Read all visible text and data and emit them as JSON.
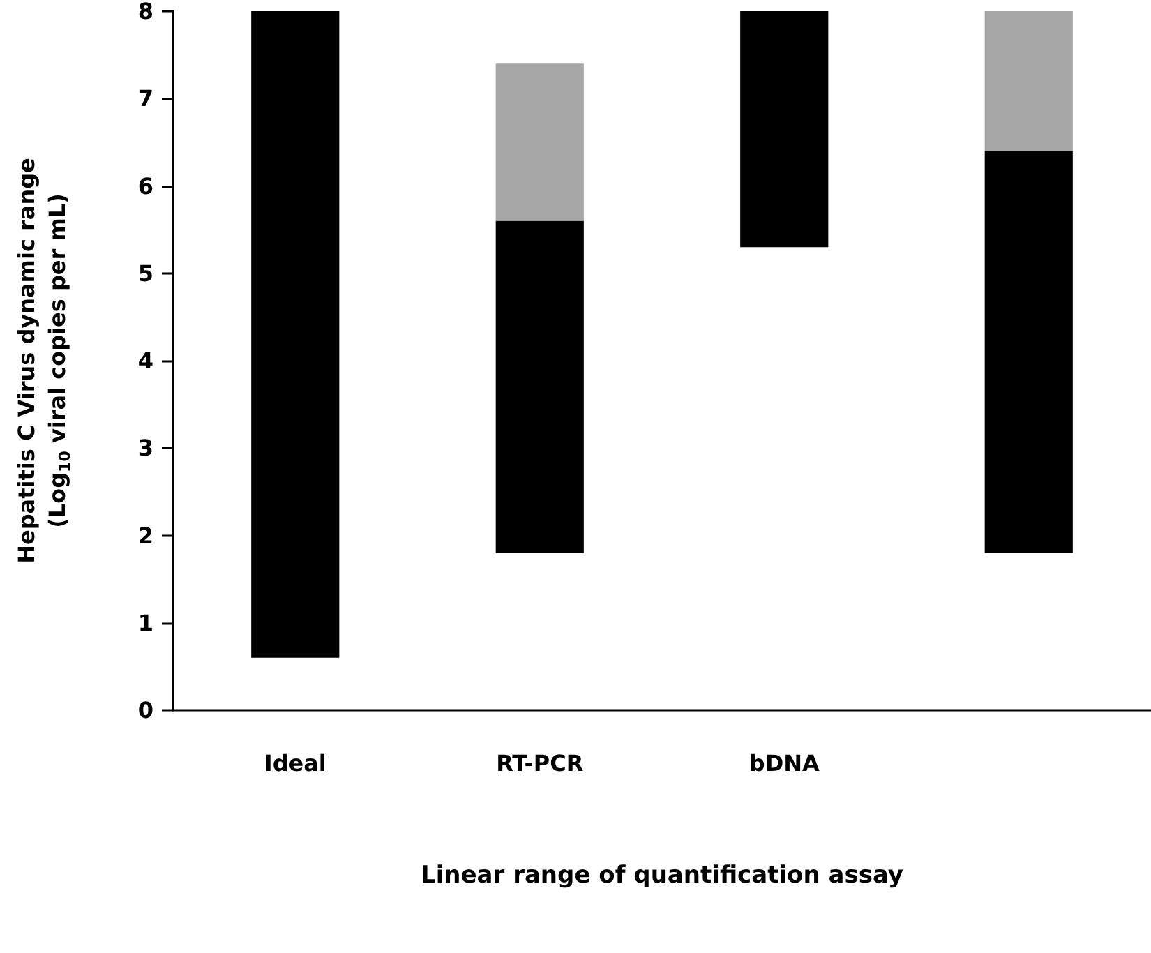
{
  "chart_data": {
    "type": "bar",
    "xlabel": "Linear range of quantification assay",
    "ylabel": "Hepatitis C Virus dynamic range\n(Log$_{10}$ viral copies per mL)",
    "categories": [
      "Ideal",
      "RT-PCR",
      "bDNA",
      null
    ],
    "series": [
      {
        "color": "#000000",
        "base": [
          0.6,
          1.8,
          5.3,
          1.8
        ],
        "values": [
          7.4,
          3.8,
          2.7,
          4.6
        ]
      },
      {
        "color": "#a6a6a6",
        "base": [
          null,
          5.6,
          null,
          6.4
        ],
        "values": [
          null,
          1.8,
          null,
          1.6
        ]
      }
    ],
    "ylim": [
      0,
      8
    ],
    "yticks": [
      0,
      1,
      2,
      3,
      4,
      5,
      6,
      7,
      8
    ],
    "grid": false
  }
}
